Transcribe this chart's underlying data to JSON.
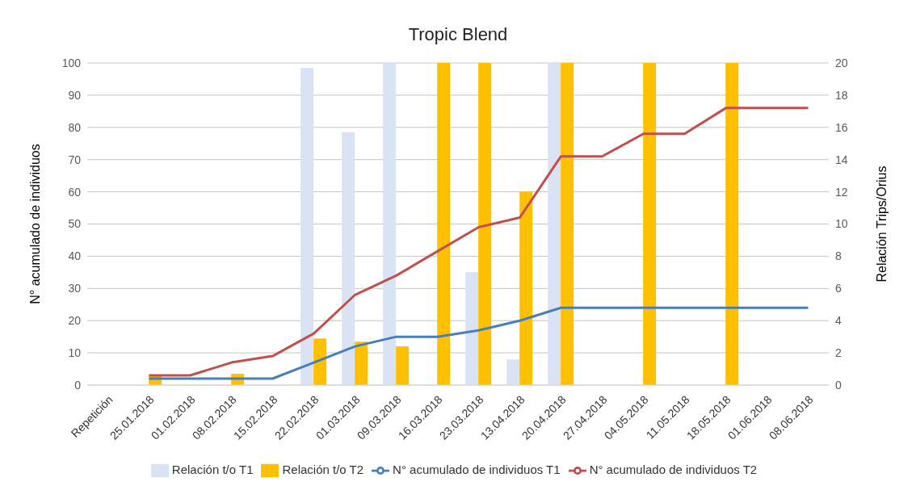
{
  "chart_data": {
    "type": "bar",
    "title": "Tropic Blend",
    "ylabel": "N° acumulado de individuos",
    "y2label": "Relación Trips/Orius",
    "categories": [
      "Repetición",
      "25.01.2018",
      "01.02.2018",
      "08.02.2018",
      "15.02.2018",
      "22.02.2018",
      "01.03.2018",
      "09.03.2018",
      "16.03.2018",
      "23.03.2018",
      "13.04.2018",
      "20.04.2018",
      "27.04.2018",
      "04.05.2018",
      "11.05.2018",
      "18.05.2018",
      "01.06.2018",
      "08.06.2018"
    ],
    "series": [
      {
        "name": "Relación t/o T1",
        "axis": "y2",
        "color": "#dae3f3",
        "values": [
          null,
          null,
          null,
          null,
          null,
          19.7,
          15.7,
          20,
          null,
          7,
          1.6,
          20,
          null,
          null,
          null,
          null,
          null,
          null
        ]
      },
      {
        "name": "Relación t/o T2",
        "axis": "y2",
        "color": "#ffc000",
        "values": [
          null,
          0.6,
          null,
          0.7,
          null,
          2.9,
          2.7,
          2.4,
          20,
          20,
          12,
          20,
          null,
          20,
          null,
          20,
          null,
          null
        ]
      },
      {
        "name": "N° acumulado de individuos T1",
        "type": "line",
        "color": "#4a7ebb",
        "values": [
          null,
          2,
          2,
          2,
          2,
          7,
          12,
          15,
          15,
          17,
          20,
          24,
          24,
          24,
          24,
          24,
          24,
          24
        ]
      },
      {
        "name": "N° acumulado de individuos T2",
        "type": "line",
        "color": "#c0504d",
        "values": [
          null,
          3,
          3,
          7,
          9,
          16,
          28,
          34,
          41.5,
          49,
          52,
          71,
          71,
          78,
          78,
          86,
          86,
          86
        ]
      }
    ],
    "ylim": [
      0,
      100
    ],
    "yticks": [
      0,
      10,
      20,
      30,
      40,
      50,
      60,
      70,
      80,
      90,
      100
    ],
    "y2lim": [
      0,
      20
    ],
    "y2ticks": [
      0,
      2,
      4,
      6,
      8,
      10,
      12,
      14,
      16,
      18,
      20
    ],
    "grid": "y",
    "legend": "bottom",
    "marker": "none"
  }
}
